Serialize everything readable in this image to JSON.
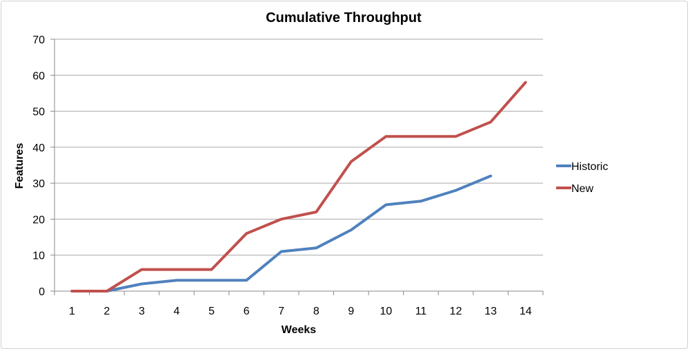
{
  "chart_data": {
    "type": "line",
    "title": "Cumulative Throughput",
    "xlabel": "Weeks",
    "ylabel": "Features",
    "x": [
      1,
      2,
      3,
      4,
      5,
      6,
      7,
      8,
      9,
      10,
      11,
      12,
      13,
      14
    ],
    "ylim": [
      0,
      70
    ],
    "yticks": [
      0,
      10,
      20,
      30,
      40,
      50,
      60,
      70
    ],
    "grid": "horizontal",
    "legend_position": "right",
    "series": [
      {
        "name": "Historic",
        "color": "#4F81BD",
        "values": [
          0,
          0,
          2,
          3,
          3,
          3,
          11,
          12,
          17,
          24,
          25,
          28,
          32,
          null
        ]
      },
      {
        "name": "New",
        "color": "#C0504D",
        "values": [
          0,
          0,
          6,
          6,
          6,
          16,
          20,
          22,
          36,
          43,
          43,
          43,
          47,
          58
        ]
      }
    ]
  }
}
